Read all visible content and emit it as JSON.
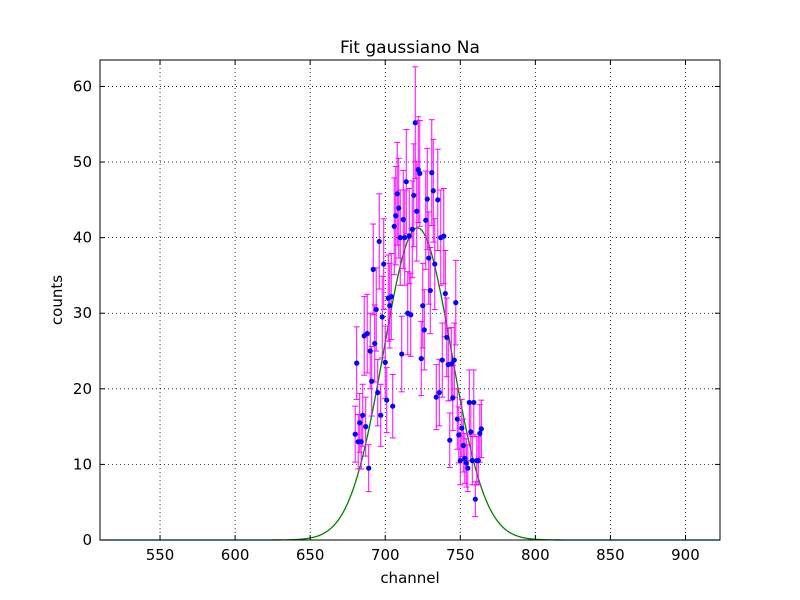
{
  "chart_data": {
    "type": "scatter",
    "title": "Fit gaussiano Na",
    "xlabel": "channel",
    "ylabel": "counts",
    "xlim": [
      510,
      923
    ],
    "ylim": [
      0,
      63.5
    ],
    "xticks": [
      550,
      600,
      650,
      700,
      750,
      800,
      850,
      900
    ],
    "yticks": [
      0,
      10,
      20,
      30,
      40,
      50,
      60
    ],
    "grid": true,
    "colors": {
      "points": "#0000ff",
      "errorbars": "#ff00ff",
      "fit": "#008000",
      "grid": "#000000"
    },
    "series": [
      {
        "kind": "points-with-errorbars",
        "x": [
          680,
          681,
          682,
          683,
          684,
          685,
          686,
          687,
          688,
          689,
          690,
          691,
          692,
          693,
          694,
          695,
          696,
          697,
          698,
          699,
          700,
          701,
          702,
          703,
          704,
          705,
          706,
          707,
          708,
          709,
          710,
          711,
          712,
          713,
          714,
          715,
          716,
          717,
          718,
          719,
          720,
          721,
          722,
          723,
          724,
          725,
          726,
          727,
          728,
          729,
          730,
          731,
          732,
          733,
          734,
          735,
          736,
          737,
          738,
          739,
          740,
          741,
          742,
          743,
          744,
          745,
          746,
          747,
          748,
          749,
          750,
          751,
          752,
          753,
          754,
          755,
          756,
          757,
          758,
          759,
          760,
          761,
          762,
          763,
          764
        ],
        "y": [
          14,
          23.4,
          13,
          15.5,
          13,
          16.5,
          27,
          15,
          27.3,
          9.5,
          25,
          21,
          35.8,
          26,
          30.5,
          19.5,
          39.5,
          16.5,
          29.5,
          36.5,
          23.5,
          18.5,
          32,
          31,
          32.2,
          17.7,
          41.5,
          42.9,
          45.8,
          43.9,
          40,
          24.6,
          42.4,
          40,
          47.4,
          30,
          40.2,
          29.8,
          41.1,
          45.6,
          55.2,
          43.5,
          49,
          48.5,
          24,
          31,
          27.8,
          42.3,
          45.1,
          37.3,
          33,
          48.6,
          46.2,
          36.5,
          18.9,
          45,
          19.5,
          40,
          23.8,
          40.2,
          32.6,
          26.8,
          23.2,
          13.2,
          23.3,
          18.8,
          23.8,
          31.4,
          16,
          13.9,
          10.5,
          14.8,
          12.5,
          10.8,
          10.2,
          9.5,
          18.2,
          14.3,
          10.5,
          18.2,
          5.4,
          10.5,
          10.5,
          14.1,
          14.7
        ],
        "yerr": [
          3.7,
          4.8,
          3.6,
          3.9,
          3.6,
          4.1,
          5.2,
          3.9,
          5.2,
          3.1,
          5,
          4.6,
          6,
          5.1,
          5.5,
          4.4,
          6.3,
          4.1,
          5.4,
          6,
          4.8,
          4.3,
          5.7,
          5.6,
          5.7,
          4.2,
          6.4,
          6.5,
          6.8,
          6.6,
          6.3,
          5,
          6.5,
          6.3,
          6.9,
          5.5,
          6.3,
          5.5,
          6.4,
          6.8,
          7.4,
          6.6,
          7,
          7,
          4.9,
          5.6,
          5.3,
          6.5,
          6.7,
          6.1,
          5.7,
          7,
          6.8,
          6,
          4.3,
          6.7,
          4.4,
          6.3,
          4.9,
          6.3,
          5.7,
          5.2,
          4.8,
          3.6,
          4.8,
          4.3,
          4.9,
          5.6,
          4,
          3.7,
          3.2,
          3.8,
          3.5,
          3.3,
          3.2,
          3.1,
          4.3,
          3.8,
          3.2,
          4.3,
          2.3,
          3.2,
          3.2,
          3.8,
          3.8
        ]
      },
      {
        "kind": "gaussian-fit",
        "amplitude": 41.3,
        "mean": 721.5,
        "sigma": 22.5
      }
    ]
  }
}
